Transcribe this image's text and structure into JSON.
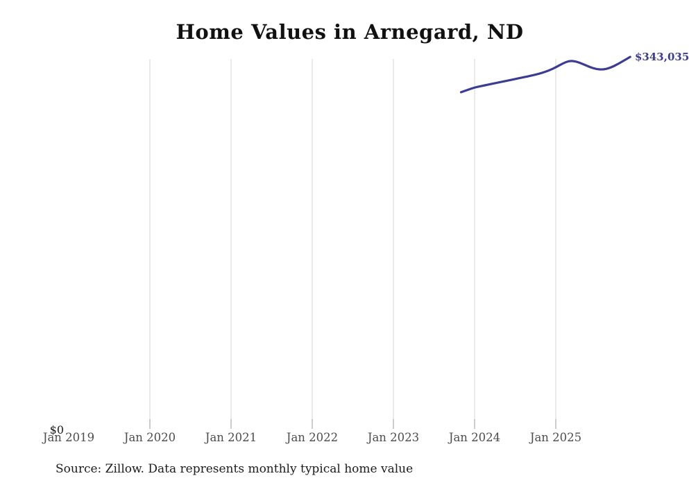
{
  "page": {
    "background_color": "#ffffff"
  },
  "chart": {
    "title": "Home Values in Arnegard, ND",
    "source_note": "Source: Zillow. Data represents monthly typical home value",
    "y_zero_label": "$0",
    "end_value_label": "$343,035",
    "line_color": "#3c3c96",
    "end_label_color": "#3c3c96",
    "gridline_color": "#d5d5d5",
    "tick_color": "#9a9a9a",
    "x_label_color": "#4d4d4d"
  },
  "chart_data": {
    "type": "line",
    "title": "Home Values in Arnegard, ND",
    "xlabel": "",
    "ylabel": "",
    "legend": "none",
    "grid": "vertical-only",
    "x_tick_labels": [
      "Jan 2019",
      "Jan 2020",
      "Jan 2021",
      "Jan 2022",
      "Jan 2023",
      "Jan 2024",
      "Jan 2025"
    ],
    "x_tick_years": [
      2019,
      2020,
      2021,
      2022,
      2023,
      2024,
      2025
    ],
    "gridline_years": [
      2020,
      2021,
      2022,
      2023,
      2024,
      2025
    ],
    "x_range": [
      "2019-01",
      "2026-01"
    ],
    "y_axis": {
      "min": 0,
      "zero_label": "$0",
      "currency": "USD"
    },
    "series": [
      {
        "name": "Monthly typical home value",
        "end_label": "$343,035",
        "months": [
          "2023-11",
          "2023-12",
          "2024-01",
          "2024-02",
          "2024-03",
          "2024-04",
          "2024-05",
          "2024-06",
          "2024-07",
          "2024-08",
          "2024-09",
          "2024-10",
          "2024-11",
          "2024-12",
          "2025-01",
          "2025-02",
          "2025-03",
          "2025-04",
          "2025-05",
          "2025-06",
          "2025-07",
          "2025-08",
          "2025-09",
          "2025-10",
          "2025-11",
          "2025-12"
        ],
        "values": [
          310400,
          312600,
          314800,
          316100,
          317400,
          318700,
          320000,
          321300,
          322600,
          323900,
          325200,
          326600,
          328300,
          330500,
          333400,
          336900,
          339500,
          338900,
          336500,
          333700,
          331700,
          331300,
          332800,
          335800,
          339400,
          343035
        ]
      }
    ]
  }
}
